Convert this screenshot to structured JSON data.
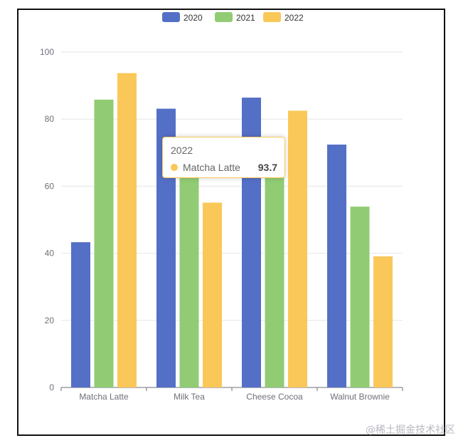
{
  "chart_data": {
    "type": "bar",
    "categories": [
      "Matcha Latte",
      "Milk Tea",
      "Cheese Cocoa",
      "Walnut Brownie"
    ],
    "series": [
      {
        "name": "2020",
        "values": [
          43.3,
          83.1,
          86.4,
          72.4
        ]
      },
      {
        "name": "2021",
        "values": [
          85.8,
          73.4,
          65.2,
          53.9
        ]
      },
      {
        "name": "2022",
        "values": [
          93.7,
          55.1,
          82.5,
          39.1
        ]
      }
    ],
    "ylim": [
      0,
      100
    ],
    "yticks": [
      0,
      20,
      40,
      60,
      80,
      100
    ],
    "legend": "top-center",
    "grid": true
  },
  "colors": {
    "2020": "#5470c6",
    "2021": "#91cc75",
    "2022": "#fac858"
  },
  "tooltip": {
    "title": "2022",
    "series_name": "Matcha Latte",
    "value": "93.7"
  },
  "watermark": "@稀土掘金技术社区"
}
